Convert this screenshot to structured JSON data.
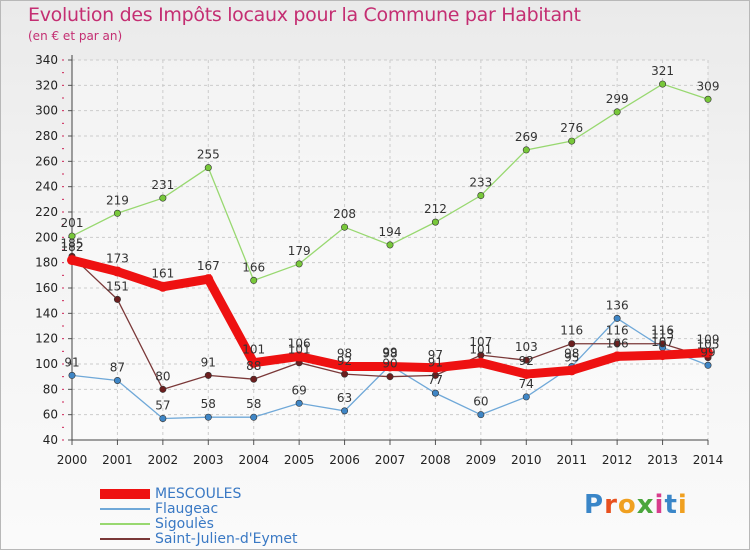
{
  "title": "Evolution des Impôts locaux pour la Commune par Habitant",
  "subtitle": "(en € et par an)",
  "logo": "Proxiti",
  "colors": {
    "title": "#c42e72",
    "legend_text": "#3a79c4",
    "grid": "#cccccc",
    "axis_tick": "#cc2255"
  },
  "chart_data": {
    "type": "line",
    "title": "Evolution des Impôts locaux pour la Commune par Habitant",
    "subtitle": "(en € et par an)",
    "xlabel": "",
    "ylabel": "",
    "categories": [
      "2000",
      "2001",
      "2002",
      "2003",
      "2004",
      "2005",
      "2006",
      "2007",
      "2008",
      "2009",
      "2010",
      "2011",
      "2012",
      "2013",
      "2014"
    ],
    "ylim": [
      40,
      340
    ],
    "yticks": [
      40,
      60,
      80,
      100,
      120,
      140,
      160,
      180,
      200,
      220,
      240,
      260,
      280,
      300,
      320,
      340
    ],
    "grid": true,
    "legend_position": "bottom-left",
    "series": [
      {
        "name": "Sigoulès",
        "color": "#98d870",
        "marker": "#78c83a",
        "values": [
          201,
          219,
          231,
          255,
          166,
          179,
          208,
          194,
          212,
          233,
          269,
          276,
          299,
          321,
          309
        ],
        "labels": [
          "201",
          "219",
          "231",
          "255",
          "166",
          "179",
          "208",
          "194",
          "212",
          "233",
          "269",
          "276",
          "299",
          "321",
          "309"
        ]
      },
      {
        "name": "Flaugeac",
        "color": "#6fa8d8",
        "marker": "#3f86c6",
        "values": [
          91,
          87,
          57,
          58,
          58,
          69,
          63,
          99,
          77,
          60,
          74,
          98,
          136,
          113,
          99
        ],
        "labels": [
          "91",
          "87",
          "57",
          "58",
          "58",
          "69",
          "63",
          "99",
          "77",
          "60",
          "74",
          "98",
          "136",
          "113",
          "99"
        ]
      },
      {
        "name": "Saint-Julien-d'Eymet",
        "color": "#7a3838",
        "marker": "#6b1e1e",
        "values": [
          185,
          151,
          80,
          91,
          88,
          101,
          92,
          90,
          91,
          107,
          103,
          116,
          116,
          116,
          105
        ],
        "labels": [
          "185",
          "151",
          "80",
          "91",
          "88",
          "101",
          "92",
          "90",
          "91",
          "107",
          "103",
          "116",
          "116",
          "116",
          "105"
        ]
      },
      {
        "name": "MESCOULES",
        "color": "#ee1111",
        "marker": "#ee1111",
        "values": [
          182,
          173,
          161,
          167,
          101,
          106,
          98,
          98,
          97,
          101,
          92,
          95,
          106,
          107,
          109
        ],
        "labels": [
          "182",
          "173",
          "161",
          "167",
          "101",
          "106",
          "98",
          "98",
          "97",
          "101",
          "92",
          "95",
          "106",
          "107",
          "109"
        ]
      }
    ],
    "legend_order": [
      "MESCOULES",
      "Flaugeac",
      "Sigoulès",
      "Saint-Julien-d'Eymet"
    ]
  }
}
